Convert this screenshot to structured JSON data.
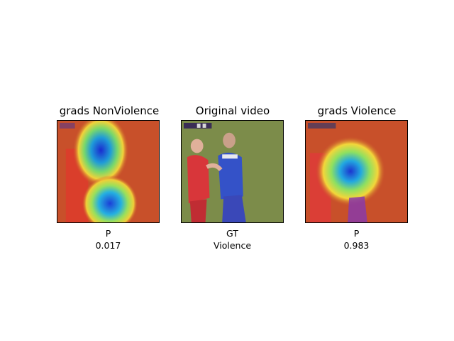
{
  "panels": [
    {
      "title": "grads NonViolence",
      "caption_label": "P",
      "caption_value": "0.017"
    },
    {
      "title": "Original video",
      "caption_label": "GT",
      "caption_value": "Violence"
    },
    {
      "title": "grads Violence",
      "caption_label": "P",
      "caption_value": "0.983"
    }
  ],
  "colors": {
    "heatmap_background": "#c8502a",
    "field_green": "#7c8c4a",
    "player_red": "#d8363a",
    "player_blue": "#3452c8"
  }
}
